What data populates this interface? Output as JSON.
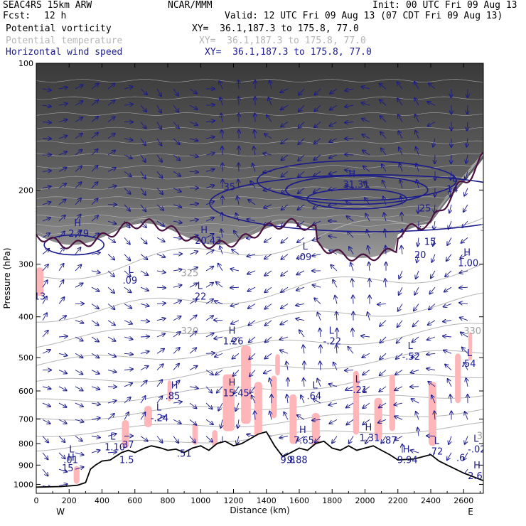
{
  "header": {
    "model": "SEAC4RS 15km ARW",
    "org": "NCAR/MMM",
    "init": "Init: 00 UTC Fri 09 Aug 13",
    "fcst_label": "Fcst:",
    "fcst_value": "12 h",
    "valid": "Valid: 12 UTC Fri 09 Aug 13 (07 CDT Fri 09 Aug 13)",
    "fields": [
      {
        "name": "Potential vorticity",
        "xy": "XY=  36.1,187.3 to 175.8, 77.0",
        "color": "#000000"
      },
      {
        "name": "Potential temperature",
        "xy": "XY=  36.1,187.3 to 175.8, 77.0",
        "color": "#b4b4b4"
      },
      {
        "name": "Horizontal wind speed",
        "xy": "XY=  36.1,187.3 to 175.8, 77.0",
        "color": "#1a1a8c"
      }
    ]
  },
  "chart_data": {
    "type": "cross-section",
    "xlabel": "Distance (km)",
    "ylabel": "Pressure (hPa)",
    "xlim": [
      0,
      2720
    ],
    "ylim": [
      1050,
      100
    ],
    "y_scale": "log",
    "x_ticks": [
      "0",
      "200",
      "400",
      "600",
      "800",
      "1000",
      "1200",
      "1400",
      "1600",
      "1800",
      "2000",
      "2200",
      "2400",
      "2600"
    ],
    "y_ticks": [
      "100",
      "200",
      "300",
      "400",
      "500",
      "600",
      "700",
      "800",
      "900",
      "1000"
    ],
    "endpoints": {
      "left": "W",
      "right": "E"
    },
    "terrain_profile": [
      [
        0,
        1015
      ],
      [
        150,
        1012
      ],
      [
        250,
        1005
      ],
      [
        300,
        990
      ],
      [
        330,
        920
      ],
      [
        360,
        900
      ],
      [
        400,
        880
      ],
      [
        450,
        875
      ],
      [
        480,
        860
      ],
      [
        520,
        840
      ],
      [
        560,
        830
      ],
      [
        600,
        840
      ],
      [
        660,
        820
      ],
      [
        700,
        810
      ],
      [
        760,
        820
      ],
      [
        800,
        830
      ],
      [
        850,
        825
      ],
      [
        900,
        840
      ],
      [
        950,
        820
      ],
      [
        1000,
        810
      ],
      [
        1050,
        830
      ],
      [
        1100,
        800
      ],
      [
        1150,
        790
      ],
      [
        1200,
        810
      ],
      [
        1250,
        800
      ],
      [
        1300,
        780
      ],
      [
        1350,
        760
      ],
      [
        1400,
        750
      ],
      [
        1450,
        810
      ],
      [
        1500,
        860
      ],
      [
        1550,
        840
      ],
      [
        1600,
        820
      ],
      [
        1650,
        830
      ],
      [
        1700,
        800
      ],
      [
        1750,
        790
      ],
      [
        1800,
        820
      ],
      [
        1850,
        830
      ],
      [
        1900,
        810
      ],
      [
        1950,
        830
      ],
      [
        2000,
        820
      ],
      [
        2050,
        810
      ],
      [
        2100,
        830
      ],
      [
        2150,
        850
      ],
      [
        2200,
        875
      ],
      [
        2300,
        870
      ],
      [
        2350,
        860
      ],
      [
        2400,
        850
      ],
      [
        2450,
        880
      ],
      [
        2500,
        900
      ],
      [
        2600,
        940
      ],
      [
        2720,
        980
      ]
    ],
    "wind_speed_labels": [
      {
        "x": 1140,
        "p": 200,
        "text": "35"
      },
      {
        "x": 2330,
        "p": 225,
        "text": "25"
      },
      {
        "x": 2360,
        "p": 270,
        "text": "15"
      },
      {
        "x": 2300,
        "p": 290,
        "text": "20"
      }
    ],
    "theta_labels": [
      {
        "x": 880,
        "p": 320,
        "text": "325"
      },
      {
        "x": 880,
        "p": 440,
        "text": "320"
      },
      {
        "x": 2600,
        "p": 440,
        "text": "330"
      },
      {
        "x": 2700,
        "p": 250,
        "text": "345"
      },
      {
        "x": 2680,
        "p": 780,
        "text": "315"
      }
    ],
    "extrema": [
      {
        "x": 230,
        "p": 255,
        "kind": "H",
        "value": "2.79"
      },
      {
        "x": 1000,
        "p": 265,
        "kind": "H",
        "value": "20.43"
      },
      {
        "x": 560,
        "p": 330,
        "kind": "L",
        "value": ".09"
      },
      {
        "x": 1620,
        "p": 290,
        "kind": "L",
        "value": ".09"
      },
      {
        "x": 980,
        "p": 360,
        "kind": "L",
        "value": ".22"
      },
      {
        "x": 1170,
        "p": 460,
        "kind": "H",
        "value": "1.26"
      },
      {
        "x": 1780,
        "p": 460,
        "kind": "L",
        "value": "-.22"
      },
      {
        "x": 2260,
        "p": 500,
        "kind": "L",
        "value": "-.52"
      },
      {
        "x": 2620,
        "p": 520,
        "kind": "L",
        "value": ".54"
      },
      {
        "x": 2600,
        "p": 300,
        "kind": "H",
        "value": "1.00"
      },
      {
        "x": 2530,
        "p": 200,
        "kind": "L",
        "value": "14"
      },
      {
        "x": 1900,
        "p": 195,
        "kind": "H",
        "value": "31.31"
      },
      {
        "x": 20,
        "p": 360,
        "kind": "",
        "value": "13"
      },
      {
        "x": 820,
        "p": 620,
        "kind": "H",
        "value": ".85"
      },
      {
        "x": 1170,
        "p": 610,
        "kind": "H",
        "value": "15.45"
      },
      {
        "x": 1680,
        "p": 620,
        "kind": "L",
        "value": ".64"
      },
      {
        "x": 1940,
        "p": 600,
        "kind": "L",
        "value": "-.21"
      },
      {
        "x": 730,
        "p": 700,
        "kind": "L",
        "value": "-.24"
      },
      {
        "x": 450,
        "p": 820,
        "kind": "L",
        "value": "1.10"
      },
      {
        "x": 540,
        "p": 810,
        "kind": "",
        "value": ".37"
      },
      {
        "x": 1600,
        "p": 790,
        "kind": "H",
        "value": "7.65"
      },
      {
        "x": 2000,
        "p": 780,
        "kind": "H",
        "value": "1.31"
      },
      {
        "x": 2140,
        "p": 790,
        "kind": "",
        "value": ".87"
      },
      {
        "x": 890,
        "p": 850,
        "kind": "",
        "value": ".51"
      },
      {
        "x": 540,
        "p": 880,
        "kind": "",
        "value": "1.5"
      },
      {
        "x": 200,
        "p": 880,
        "kind": "L",
        "value": ".01"
      },
      {
        "x": 190,
        "p": 920,
        "kind": "H",
        "value": "15"
      },
      {
        "x": 1520,
        "p": 880,
        "kind": "",
        "value": "9.8"
      },
      {
        "x": 1560,
        "p": 880,
        "kind": "",
        "value": "9.88"
      },
      {
        "x": 2230,
        "p": 880,
        "kind": "H",
        "value": "9.94"
      },
      {
        "x": 2420,
        "p": 840,
        "kind": "L",
        "value": ".72"
      },
      {
        "x": 2590,
        "p": 870,
        "kind": "",
        "value": ".6"
      },
      {
        "x": 2660,
        "p": 830,
        "kind": "L",
        "value": "-.02"
      },
      {
        "x": 2660,
        "p": 960,
        "kind": "H",
        "value": "2.66"
      }
    ],
    "colors": {
      "potential_vorticity": "#000000",
      "potential_temperature": "#b4b4b4",
      "wind_speed": "#1a1a8c",
      "shading_high_pv": "#444444",
      "shading_pink": "#ffb6b9",
      "wind_vector": "#1a1a8c",
      "tropopause_contour": "#4a1040"
    }
  }
}
